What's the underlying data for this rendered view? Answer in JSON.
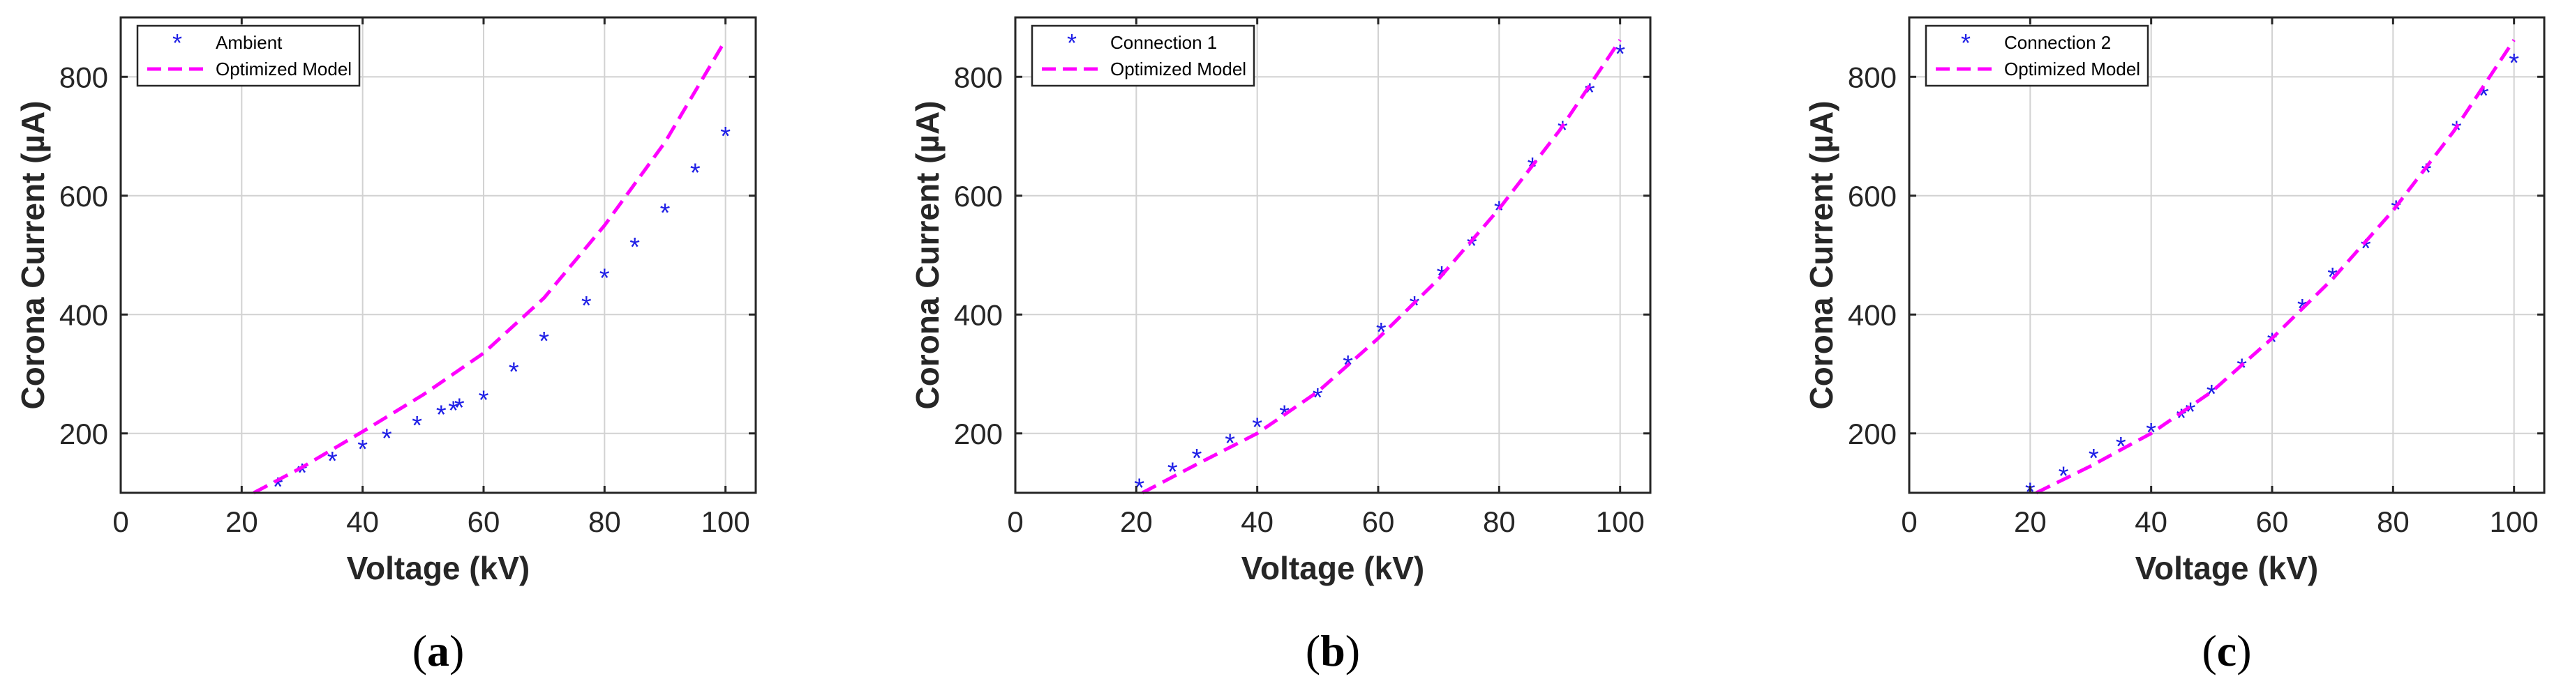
{
  "colors": {
    "data": "#1f1fe6",
    "model": "#ff00ff",
    "grid": "#d2d2d2",
    "axis": "#262626"
  },
  "chart_data": [
    {
      "type": "scatter",
      "panel_label": "a",
      "xlabel": "Voltage (kV)",
      "ylabel": "Corona Current (µA)",
      "xlim": [
        0,
        105
      ],
      "ylim": [
        100,
        900
      ],
      "xticks": [
        0,
        20,
        40,
        60,
        80,
        100
      ],
      "yticks": [
        200,
        400,
        600,
        800
      ],
      "grid": true,
      "legend_position": "top-left",
      "series": [
        {
          "name": "Ambient",
          "style": "markers",
          "x": [
            26,
            30,
            35,
            40,
            44,
            49,
            53,
            55,
            56,
            60,
            65,
            70,
            77,
            80,
            85,
            90,
            95,
            100
          ],
          "y": [
            112,
            135,
            155,
            175,
            193,
            215,
            233,
            240,
            245,
            258,
            305,
            357,
            417,
            463,
            515,
            573,
            640,
            702
          ]
        },
        {
          "name": "Optimized Model",
          "style": "dashed",
          "x": [
            22,
            30,
            40,
            50,
            60,
            70,
            80,
            90,
            100
          ],
          "y": [
            100,
            143,
            203,
            265,
            335,
            428,
            550,
            690,
            862
          ]
        }
      ]
    },
    {
      "type": "scatter",
      "panel_label": "b",
      "xlabel": "Voltage (kV)",
      "ylabel": "Corona Current (µA)",
      "xlim": [
        0,
        105
      ],
      "ylim": [
        100,
        900
      ],
      "xticks": [
        0,
        20,
        40,
        60,
        80,
        100
      ],
      "yticks": [
        200,
        400,
        600,
        800
      ],
      "grid": true,
      "legend_position": "top-left",
      "series": [
        {
          "name": "Connection 1",
          "style": "markers",
          "x": [
            20.5,
            26,
            30,
            35.5,
            40,
            44.5,
            50,
            55,
            60.5,
            66,
            70.5,
            75.5,
            80,
            85.5,
            90.5,
            95,
            100
          ],
          "y": [
            110,
            137,
            160,
            185,
            212,
            233,
            262,
            317,
            372,
            417,
            467,
            517,
            577,
            650,
            712,
            775,
            840
          ]
        },
        {
          "name": "Optimized Model",
          "style": "dashed",
          "x": [
            21,
            30,
            40,
            50,
            60,
            70,
            80,
            90,
            100
          ],
          "y": [
            100,
            148,
            200,
            270,
            360,
            460,
            578,
            710,
            862
          ]
        }
      ]
    },
    {
      "type": "scatter",
      "panel_label": "c",
      "xlabel": "Voltage (kV)",
      "ylabel": "Corona Current (µA)",
      "xlim": [
        0,
        105
      ],
      "ylim": [
        100,
        900
      ],
      "xticks": [
        0,
        20,
        40,
        60,
        80,
        100
      ],
      "yticks": [
        200,
        400,
        600,
        800
      ],
      "grid": true,
      "legend_position": "top-left",
      "series": [
        {
          "name": "Connection 2",
          "style": "markers",
          "x": [
            20,
            25.5,
            30.5,
            35,
            40,
            45,
            46.5,
            50,
            55,
            60,
            65,
            70,
            75.5,
            80.5,
            85.5,
            90.5,
            95,
            100
          ],
          "y": [
            103,
            130,
            160,
            180,
            203,
            227,
            238,
            268,
            312,
            355,
            412,
            465,
            513,
            578,
            640,
            712,
            770,
            825
          ]
        },
        {
          "name": "Optimized Model",
          "style": "dashed",
          "x": [
            21,
            30,
            40,
            50,
            60,
            70,
            80,
            90,
            100
          ],
          "y": [
            100,
            145,
            200,
            270,
            360,
            460,
            575,
            708,
            862
          ]
        }
      ]
    }
  ]
}
